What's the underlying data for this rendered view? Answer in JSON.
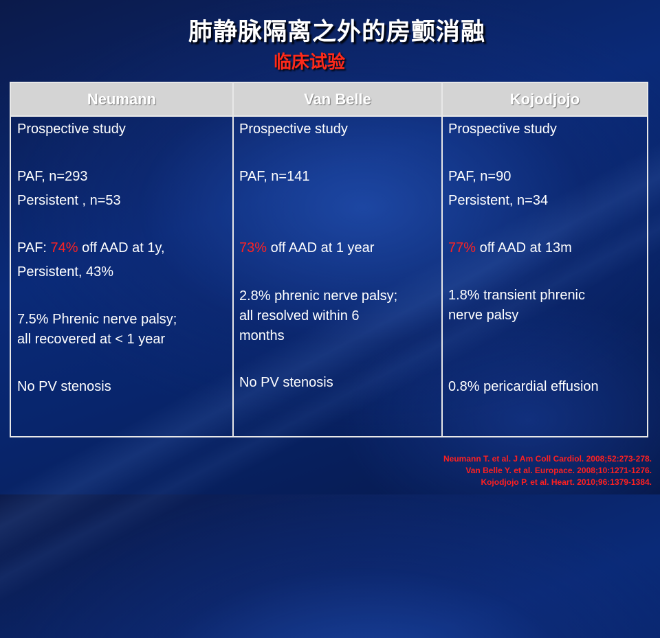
{
  "slide": {
    "title": "肺静脉隔离之外的房颤消融",
    "subtitle": "临床试验"
  },
  "table": {
    "headers": [
      "Neumann",
      "Van Belle",
      "Kojodjojo"
    ],
    "neumann": {
      "study": "Prospective study",
      "paf": "PAF, n=293",
      "persistent": "Persistent , n=53",
      "outcome_prefix": "PAF: ",
      "outcome_pct": "74%",
      "outcome_suffix": " off AAD at 1y,",
      "outcome_line2": "Persistent, 43%",
      "palsy_line1": "7.5% Phrenic nerve palsy;",
      "palsy_line2": "all recovered at < 1 year",
      "stenosis": "No PV stenosis"
    },
    "vanbelle": {
      "study": "Prospective study",
      "paf": "PAF, n=141",
      "outcome_pct": "73%",
      "outcome_suffix": " off AAD at 1 year",
      "palsy_line1": "2.8% phrenic nerve palsy;",
      "palsy_line2": "all resolved within 6",
      "palsy_line3": "months",
      "stenosis": "No PV stenosis"
    },
    "kojodjojo": {
      "study": "Prospective study",
      "paf": "PAF, n=90",
      "persistent": "Persistent, n=34",
      "outcome_pct": "77%",
      "outcome_suffix": " off AAD at 13m",
      "palsy_line1": "1.8% transient phrenic",
      "palsy_line2": "nerve palsy",
      "effusion": "0.8% pericardial effusion"
    }
  },
  "references": [
    "Neumann T. et al. J Am Coll Cardiol. 2008;52:273-278.",
    "Van Belle Y. et al. Europace. 2008;10:1271-1276.",
    "Kojodjojo  P. et al. Heart. 2010;96:1379-1384."
  ],
  "colors": {
    "highlight": "#ff2222",
    "header_bg": "#d4d4d4",
    "background": "#0a2a78"
  }
}
